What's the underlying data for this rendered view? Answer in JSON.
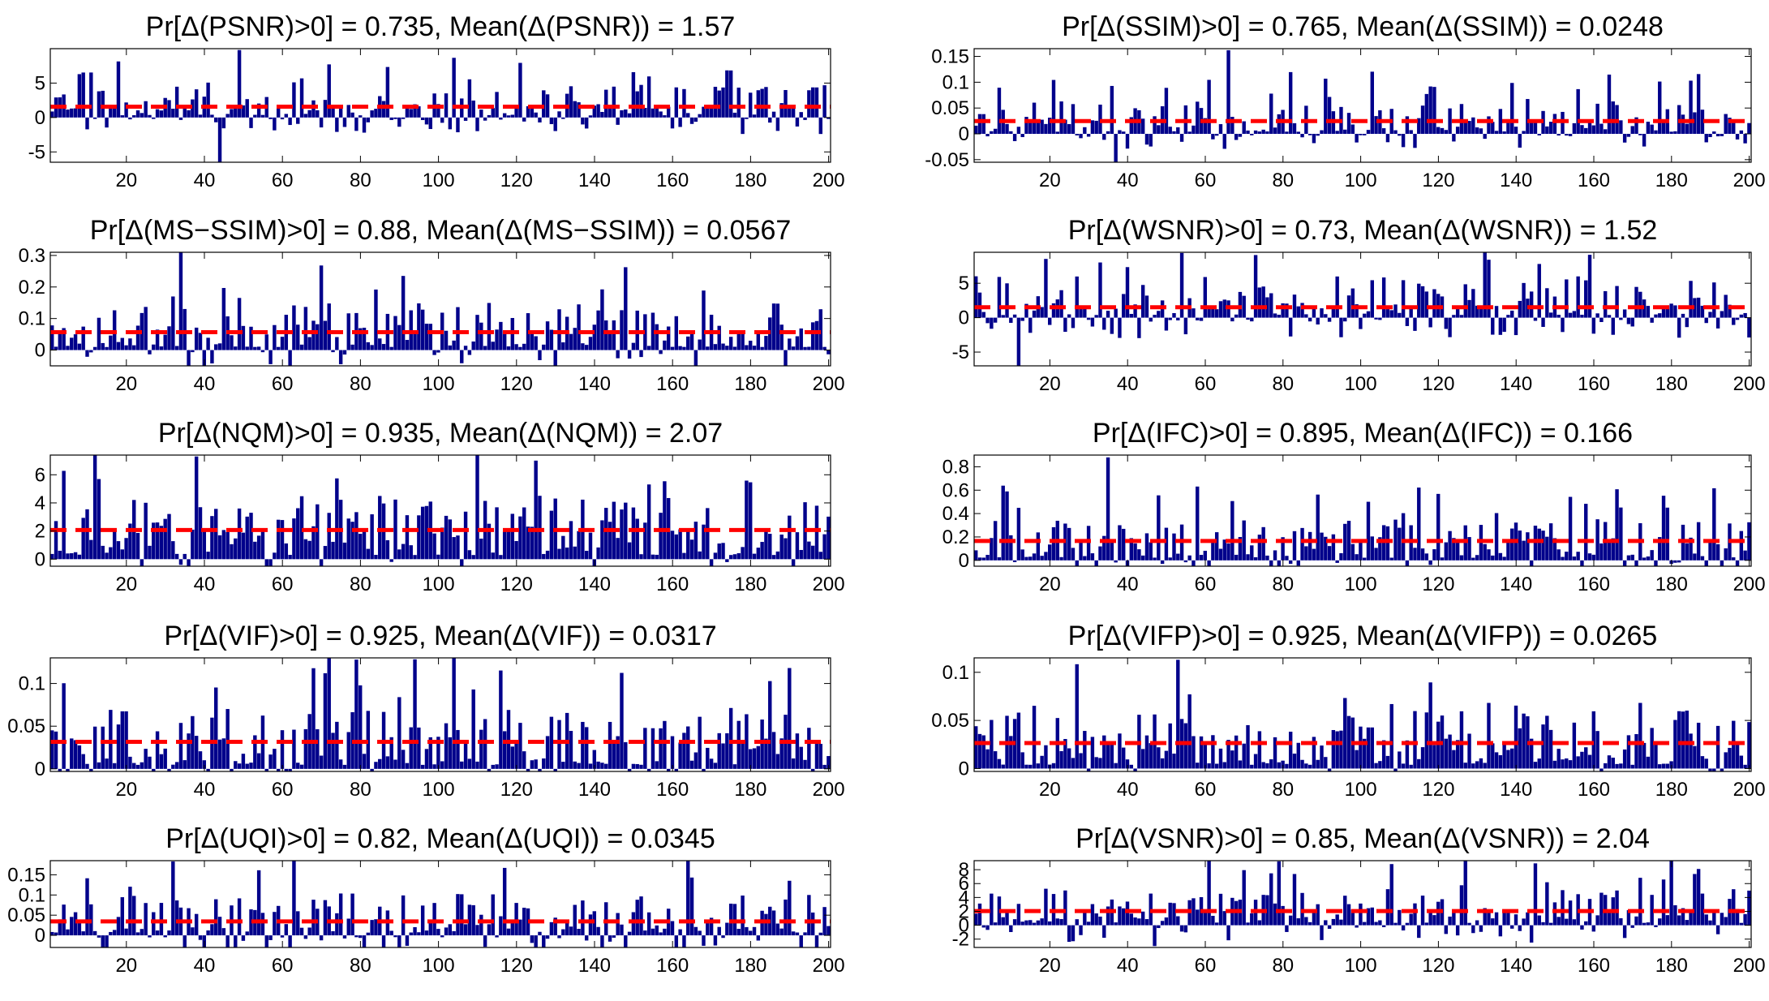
{
  "figure": {
    "mean_line_color": "#ff0000",
    "bar_color": "#00008b",
    "axes_color": "#000000"
  },
  "chart_data": [
    {
      "type": "bar",
      "title": "Pr[Δ(PSNR)>0] = 0.735, Mean(Δ(PSNR)) = 1.57",
      "prob": 0.735,
      "mean": 1.57,
      "ylim": [
        -6.5,
        10
      ],
      "yticks": [
        -5,
        0,
        5
      ],
      "ytick_labels": [
        "-5",
        "0",
        "5"
      ],
      "xlim": [
        0.5,
        200.5
      ],
      "xticks": [
        20,
        40,
        60,
        80,
        100,
        120,
        140,
        160,
        180,
        200
      ],
      "n": 200,
      "peak_max": 9.8,
      "peak_min": -6.5,
      "seed": 11,
      "x": [],
      "values": []
    },
    {
      "type": "bar",
      "title": "Pr[Δ(SSIM)>0] = 0.765, Mean(Δ(SSIM)) = 0.0248",
      "prob": 0.765,
      "mean": 0.0248,
      "ylim": [
        -0.055,
        0.165
      ],
      "yticks": [
        -0.05,
        0,
        0.05,
        0.1,
        0.15
      ],
      "ytick_labels": [
        "-0.05",
        "0",
        "0.05",
        "0.1",
        "0.15"
      ],
      "xlim": [
        0.5,
        200.5
      ],
      "xticks": [
        20,
        40,
        60,
        80,
        100,
        120,
        140,
        160,
        180,
        200
      ],
      "n": 200,
      "peak_max": 0.162,
      "peak_min": -0.055,
      "seed": 23,
      "x": [],
      "values": []
    },
    {
      "type": "bar",
      "title": "Pr[Δ(MS−SSIM)>0] = 0.88, Mean(Δ(MS−SSIM)) = 0.0567",
      "prob": 0.88,
      "mean": 0.0567,
      "ylim": [
        -0.05,
        0.31
      ],
      "yticks": [
        0,
        0.1,
        0.2,
        0.3
      ],
      "ytick_labels": [
        "0",
        "0.1",
        "0.2",
        "0.3"
      ],
      "xlim": [
        0.5,
        200.5
      ],
      "xticks": [
        20,
        40,
        60,
        80,
        100,
        120,
        140,
        160,
        180,
        200
      ],
      "n": 200,
      "peak_max": 0.31,
      "peak_min": -0.05,
      "seed": 37,
      "x": [],
      "values": []
    },
    {
      "type": "bar",
      "title": "Pr[Δ(WSNR)>0] = 0.73, Mean(Δ(WSNR)) = 1.52",
      "prob": 0.73,
      "mean": 1.52,
      "ylim": [
        -7,
        9.5
      ],
      "yticks": [
        -5,
        0,
        5
      ],
      "ytick_labels": [
        "-5",
        "0",
        "5"
      ],
      "xlim": [
        0.5,
        200.5
      ],
      "xticks": [
        20,
        40,
        60,
        80,
        100,
        120,
        140,
        160,
        180,
        200
      ],
      "n": 200,
      "peak_max": 9.4,
      "peak_min": -7,
      "seed": 41,
      "x": [],
      "values": []
    },
    {
      "type": "bar",
      "title": "Pr[Δ(NQM)>0] = 0.935, Mean(Δ(NQM)) = 2.07",
      "prob": 0.935,
      "mean": 2.07,
      "ylim": [
        -0.5,
        7.4
      ],
      "yticks": [
        0,
        2,
        4,
        6
      ],
      "ytick_labels": [
        "0",
        "2",
        "4",
        "6"
      ],
      "xlim": [
        0.5,
        200.5
      ],
      "xticks": [
        20,
        40,
        60,
        80,
        100,
        120,
        140,
        160,
        180,
        200
      ],
      "n": 200,
      "peak_max": 7.3,
      "peak_min": -0.4,
      "seed": 53,
      "x": [],
      "values": []
    },
    {
      "type": "bar",
      "title": "Pr[Δ(IFC)>0] = 0.895, Mean(Δ(IFC)) = 0.166",
      "prob": 0.895,
      "mean": 0.166,
      "ylim": [
        -0.05,
        0.9
      ],
      "yticks": [
        0,
        0.2,
        0.4,
        0.6,
        0.8
      ],
      "ytick_labels": [
        "0",
        "0.2",
        "0.4",
        "0.6",
        "0.8"
      ],
      "xlim": [
        0.5,
        200.5
      ],
      "xticks": [
        20,
        40,
        60,
        80,
        100,
        120,
        140,
        160,
        180,
        200
      ],
      "n": 200,
      "peak_max": 0.88,
      "peak_min": -0.03,
      "seed": 67,
      "x": [],
      "values": []
    },
    {
      "type": "bar",
      "title": "Pr[Δ(VIF)>0] = 0.925, Mean(Δ(VIF)) = 0.0317",
      "prob": 0.925,
      "mean": 0.0317,
      "ylim": [
        -0.003,
        0.13
      ],
      "yticks": [
        0,
        0.05,
        0.1
      ],
      "ytick_labels": [
        "0",
        "0.05",
        "0.1"
      ],
      "xlim": [
        0.5,
        200.5
      ],
      "xticks": [
        20,
        40,
        60,
        80,
        100,
        120,
        140,
        160,
        180,
        200
      ],
      "n": 200,
      "peak_max": 0.128,
      "peak_min": -0.003,
      "seed": 71,
      "x": [],
      "values": []
    },
    {
      "type": "bar",
      "title": "Pr[Δ(VIFP)>0] = 0.925, Mean(Δ(VIFP)) = 0.0265",
      "prob": 0.925,
      "mean": 0.0265,
      "ylim": [
        -0.003,
        0.115
      ],
      "yticks": [
        0,
        0.05,
        0.1
      ],
      "ytick_labels": [
        "0",
        "0.05",
        "0.1"
      ],
      "xlim": [
        0.5,
        200.5
      ],
      "xticks": [
        20,
        40,
        60,
        80,
        100,
        120,
        140,
        160,
        180,
        200
      ],
      "n": 200,
      "peak_max": 0.113,
      "peak_min": -0.003,
      "seed": 83,
      "x": [],
      "values": []
    },
    {
      "type": "bar",
      "title": "Pr[Δ(UQI)>0] = 0.82, Mean(Δ(UQI)) = 0.0345",
      "prob": 0.82,
      "mean": 0.0345,
      "ylim": [
        -0.03,
        0.185
      ],
      "yticks": [
        0,
        0.05,
        0.1,
        0.15
      ],
      "ytick_labels": [
        "0",
        "0.05",
        "0.1",
        "0.15"
      ],
      "xlim": [
        0.5,
        200.5
      ],
      "xticks": [
        20,
        40,
        60,
        80,
        100,
        120,
        140,
        160,
        180,
        200
      ],
      "n": 200,
      "peak_max": 0.183,
      "peak_min": -0.03,
      "seed": 97,
      "x": [],
      "values": []
    },
    {
      "type": "bar",
      "title": "Pr[Δ(VSNR)>0] = 0.85, Mean(Δ(VSNR)) = 2.04",
      "prob": 0.85,
      "mean": 2.04,
      "ylim": [
        -3.2,
        9.3
      ],
      "yticks": [
        -2,
        0,
        2,
        4,
        6,
        8
      ],
      "ytick_labels": [
        "-2",
        "0",
        "2",
        "4",
        "6",
        "8"
      ],
      "xlim": [
        0.5,
        200.5
      ],
      "xticks": [
        20,
        40,
        60,
        80,
        100,
        120,
        140,
        160,
        180,
        200
      ],
      "n": 200,
      "peak_max": 9.2,
      "peak_min": -3,
      "seed": 101,
      "x": [],
      "values": []
    }
  ]
}
